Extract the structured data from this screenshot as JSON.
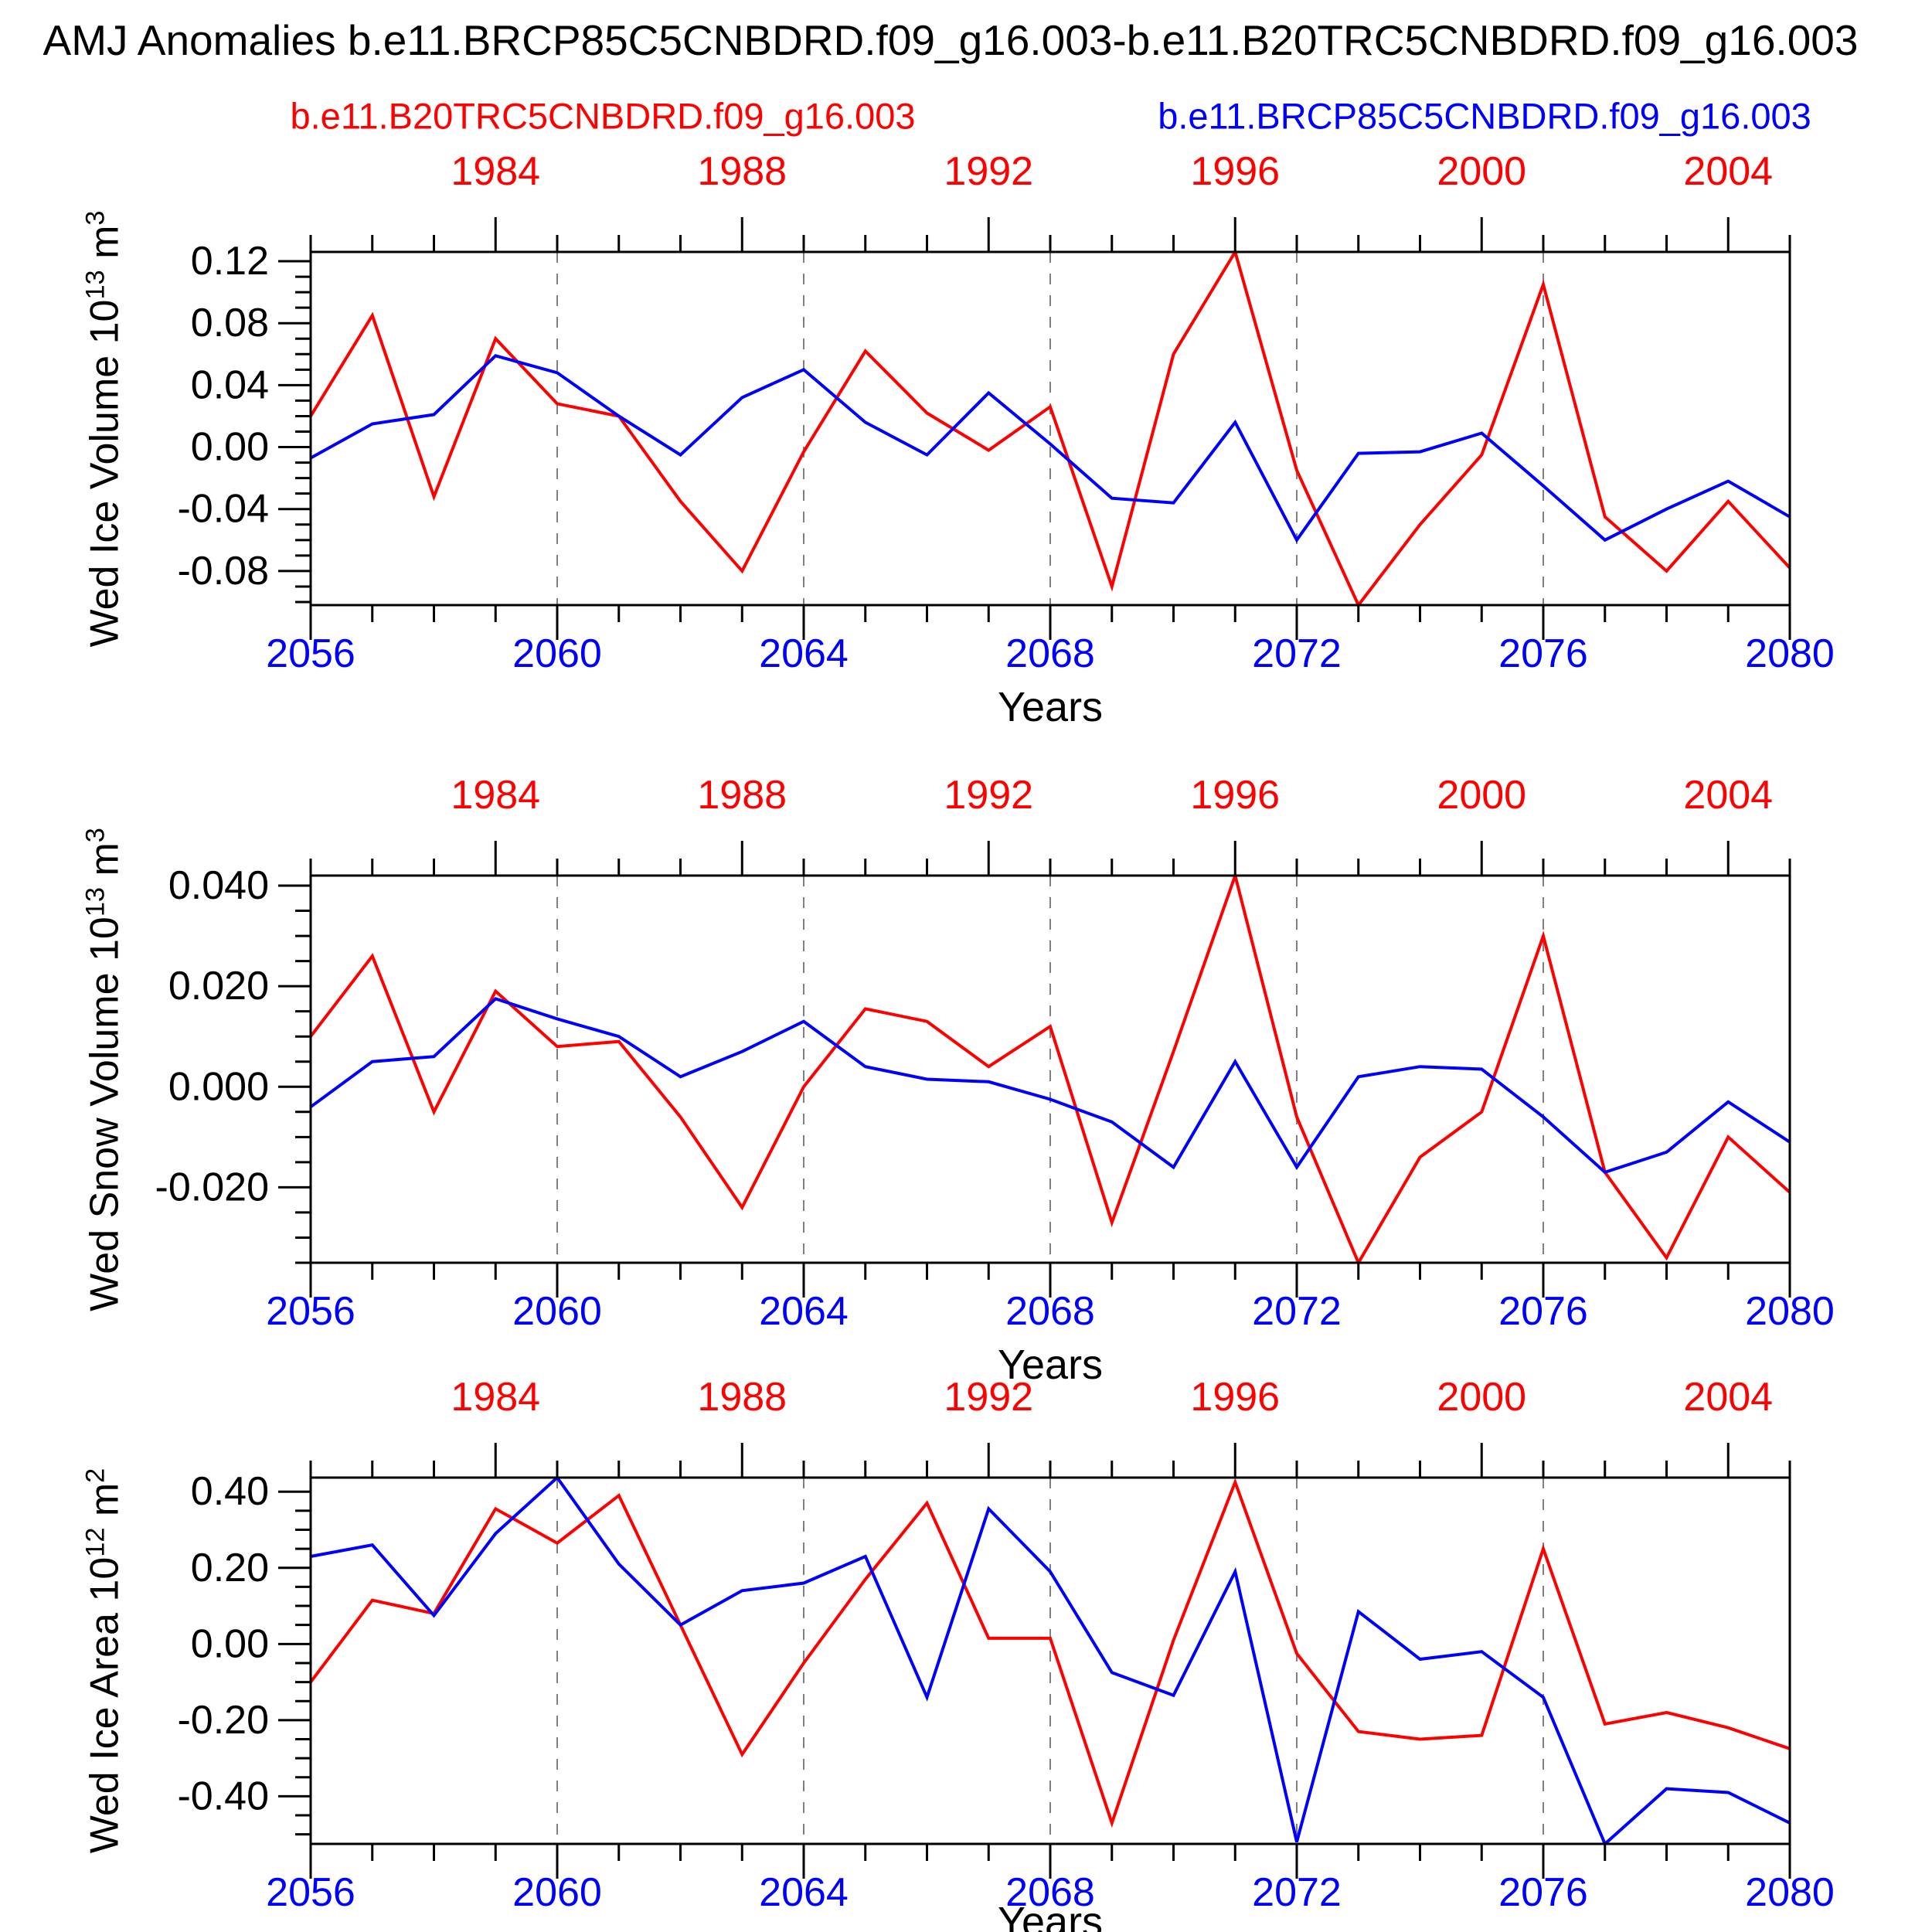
{
  "title": "AMJ Anomalies b.e11.BRCP85C5CNBDRD.f09_g16.003-b.e11.B20TRC5CNBDRD.f09_g16.003",
  "legend": {
    "red": "b.e11.B20TRC5CNBDRD.f09_g16.003",
    "blue": "b.e11.BRCP85C5CNBDRD.f09_g16.003"
  },
  "colors": {
    "red": "#ff0000",
    "blue": "#0000ff",
    "text": "#000000",
    "grid": "#808080",
    "box": "#000000"
  },
  "x_axis": {
    "bottom_labels": [
      "2056",
      "2060",
      "2064",
      "2068",
      "2072",
      "2076",
      "2080"
    ],
    "bottom_major_years": [
      2056,
      2060,
      2064,
      2068,
      2072,
      2076,
      2080
    ],
    "top_labels": [
      "1984",
      "1988",
      "1992",
      "1996",
      "2000",
      "2004"
    ],
    "top_major_years": [
      2059,
      2063,
      2067,
      2071,
      2075,
      2079
    ],
    "top_year_offset": -75,
    "dashed_years": [
      2060,
      2064,
      2068,
      2072,
      2076
    ],
    "minor_step": 1,
    "range": [
      2056,
      2080
    ]
  },
  "chart_data": [
    {
      "type": "line",
      "title": "",
      "xlabel": "Years",
      "ylabel": "Wed Ice Volume 10^13 m^3",
      "ylabel_parts": {
        "prefix": "Wed Ice Volume 10",
        "exp": "13",
        "mid": " m",
        "exp2": "3"
      },
      "ylim": [
        -0.102,
        0.126
      ],
      "ytick_values": [
        0.12,
        0.08,
        0.04,
        0.0,
        -0.04,
        -0.08
      ],
      "ytick_labels": [
        "0.12",
        "0.08",
        "0.04",
        "0.00",
        "-0.04",
        "-0.08"
      ],
      "yminor_step": 0.01,
      "grid": "dashed-vertical",
      "legend_position": "top",
      "x": [
        2056,
        2057,
        2058,
        2059,
        2060,
        2061,
        2062,
        2063,
        2064,
        2065,
        2066,
        2067,
        2068,
        2069,
        2070,
        2071,
        2072,
        2073,
        2074,
        2075,
        2076,
        2077,
        2078,
        2079,
        2080
      ],
      "series": [
        {
          "name": "b.e11.B20TRC5CNBDRD.f09_g16.003",
          "color": "#ff0000",
          "color_key": "red",
          "values": [
            0.02,
            0.085,
            -0.032,
            0.07,
            0.028,
            0.02,
            -0.035,
            -0.08,
            -0.003,
            0.062,
            0.022,
            -0.002,
            0.026,
            -0.09,
            0.06,
            0.126,
            -0.015,
            -0.102,
            -0.05,
            -0.005,
            0.105,
            -0.045,
            -0.08,
            -0.035,
            -0.078
          ]
        },
        {
          "name": "b.e11.BRCP85C5CNBDRD.f09_g16.003",
          "color": "#0000ff",
          "color_key": "blue",
          "values": [
            -0.007,
            0.015,
            0.021,
            0.059,
            0.048,
            0.02,
            -0.005,
            0.032,
            0.05,
            0.016,
            -0.005,
            0.035,
            0.002,
            -0.033,
            -0.036,
            0.016,
            -0.06,
            -0.004,
            -0.003,
            0.009,
            -0.025,
            -0.06,
            -0.04,
            -0.022,
            -0.045
          ]
        }
      ]
    },
    {
      "type": "line",
      "title": "",
      "xlabel": "Years",
      "ylabel": "Wed Snow Volume 10^13 m^3",
      "ylabel_parts": {
        "prefix": "Wed Snow Volume 10",
        "exp": "13",
        "mid": " m",
        "exp2": "3"
      },
      "ylim": [
        -0.035,
        0.042
      ],
      "ytick_values": [
        0.04,
        0.02,
        0.0,
        -0.02
      ],
      "ytick_labels": [
        "0.040",
        "0.020",
        "0.000",
        "-0.020"
      ],
      "yminor_step": 0.005,
      "grid": "dashed-vertical",
      "legend_position": "none",
      "x": [
        2056,
        2057,
        2058,
        2059,
        2060,
        2061,
        2062,
        2063,
        2064,
        2065,
        2066,
        2067,
        2068,
        2069,
        2070,
        2071,
        2072,
        2073,
        2074,
        2075,
        2076,
        2077,
        2078,
        2079,
        2080
      ],
      "series": [
        {
          "name": "b.e11.B20TRC5CNBDRD.f09_g16.003",
          "color": "#ff0000",
          "color_key": "red",
          "values": [
            0.01,
            0.026,
            -0.005,
            0.019,
            0.008,
            0.009,
            -0.006,
            -0.024,
            0.0,
            0.0155,
            0.013,
            0.004,
            0.012,
            -0.027,
            0.007,
            0.042,
            -0.006,
            -0.035,
            -0.014,
            -0.005,
            0.03,
            -0.017,
            -0.034,
            -0.01,
            -0.021
          ]
        },
        {
          "name": "b.e11.BRCP85C5CNBDRD.f09_g16.003",
          "color": "#0000ff",
          "color_key": "blue",
          "values": [
            -0.004,
            0.005,
            0.006,
            0.0175,
            0.0135,
            0.01,
            0.002,
            0.007,
            0.013,
            0.004,
            0.0015,
            0.001,
            -0.0025,
            -0.007,
            -0.016,
            0.005,
            -0.016,
            0.002,
            0.004,
            0.0035,
            -0.006,
            -0.017,
            -0.013,
            -0.003,
            -0.011
          ]
        }
      ]
    },
    {
      "type": "line",
      "title": "",
      "xlabel": "Years",
      "ylabel": "Wed Ice Area 10^12 m^2",
      "ylabel_parts": {
        "prefix": "Wed Ice Area 10",
        "exp": "12",
        "mid": " m",
        "exp2": "2"
      },
      "ylim": [
        -0.525,
        0.437
      ],
      "ytick_values": [
        0.4,
        0.2,
        0.0,
        -0.2,
        -0.4
      ],
      "ytick_labels": [
        "0.40",
        "0.20",
        "0.00",
        "-0.20",
        "-0.40"
      ],
      "yminor_step": 0.05,
      "grid": "dashed-vertical",
      "legend_position": "none",
      "x": [
        2056,
        2057,
        2058,
        2059,
        2060,
        2061,
        2062,
        2063,
        2064,
        2065,
        2066,
        2067,
        2068,
        2069,
        2070,
        2071,
        2072,
        2073,
        2074,
        2075,
        2076,
        2077,
        2078,
        2079,
        2080
      ],
      "series": [
        {
          "name": "b.e11.B20TRC5CNBDRD.f09_g16.003",
          "color": "#ff0000",
          "color_key": "red",
          "values": [
            -0.1,
            0.115,
            0.08,
            0.355,
            0.265,
            0.39,
            0.05,
            -0.29,
            -0.05,
            0.17,
            0.37,
            0.015,
            0.015,
            -0.47,
            0.01,
            0.425,
            -0.025,
            -0.23,
            -0.25,
            -0.24,
            0.25,
            -0.21,
            -0.18,
            -0.22,
            -0.275
          ]
        },
        {
          "name": "b.e11.BRCP85C5CNBDRD.f09_g16.003",
          "color": "#0000ff",
          "color_key": "blue",
          "values": [
            0.23,
            0.26,
            0.075,
            0.29,
            0.437,
            0.21,
            0.05,
            0.14,
            0.16,
            0.23,
            -0.14,
            0.355,
            0.19,
            -0.075,
            -0.135,
            0.19,
            -0.52,
            0.085,
            -0.04,
            -0.02,
            -0.14,
            -0.525,
            -0.38,
            -0.39,
            -0.47
          ]
        }
      ]
    }
  ]
}
